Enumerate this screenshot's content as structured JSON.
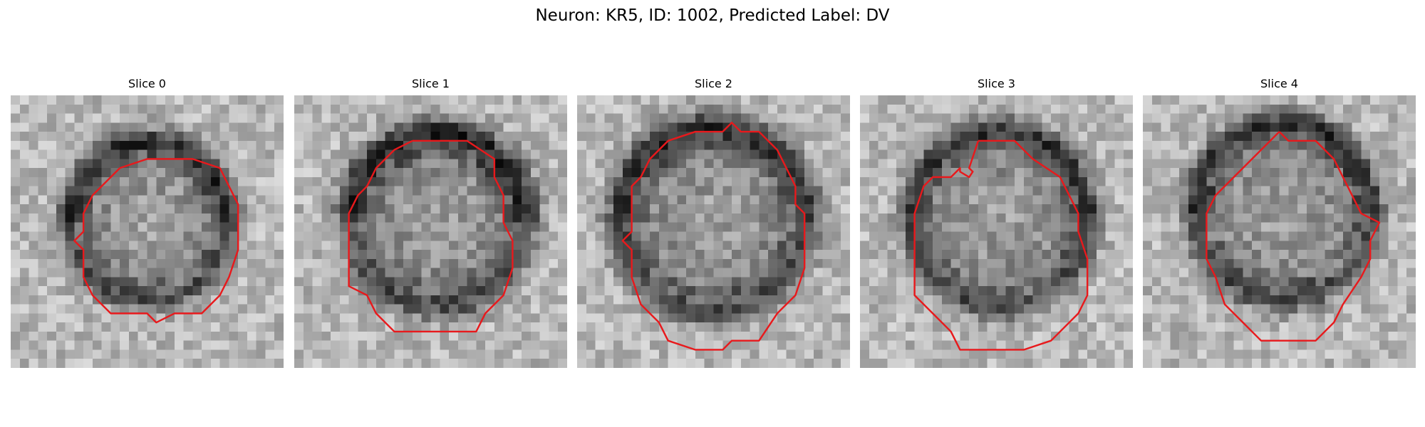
{
  "figure": {
    "title": "Neuron: KR5, ID: 1002, Predicted Label: DV"
  },
  "panels": [
    {
      "title": "Slice 0"
    },
    {
      "title": "Slice 1"
    },
    {
      "title": "Slice 2"
    },
    {
      "title": "Slice 3"
    },
    {
      "title": "Slice 4"
    }
  ],
  "colors": {
    "contour": "#e8191c",
    "background": "#ffffff"
  }
}
